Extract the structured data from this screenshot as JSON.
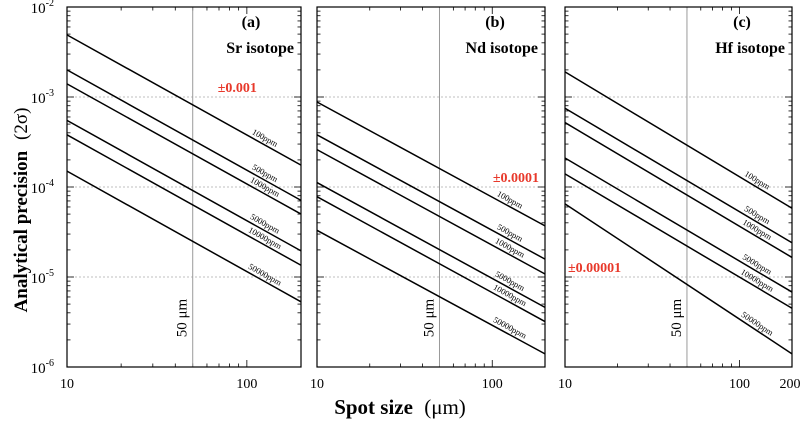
{
  "figure": {
    "ylabel": "Analytical precision",
    "ylabel_sym": "(2σ)",
    "xlabel": "Spot size",
    "xlabel_unit": "(μm)",
    "line_color": "#000000",
    "highlight_color": "#e8392b",
    "refline_color": "#9a9a9a",
    "gridline_color": "#aaaaaa"
  },
  "y_axis": {
    "scale": "log",
    "ylim": [
      1e-06,
      0.01
    ],
    "ticks": [
      {
        "value": 0.01,
        "base": "10",
        "exp": "-2"
      },
      {
        "value": 0.001,
        "base": "10",
        "exp": "-3"
      },
      {
        "value": 0.0001,
        "base": "10",
        "exp": "-4"
      },
      {
        "value": 1e-05,
        "base": "10",
        "exp": "-5"
      },
      {
        "value": 1e-06,
        "base": "10",
        "exp": "-6"
      }
    ],
    "dashed_grid_at": [
      0.001,
      0.0001,
      1e-05
    ]
  },
  "chart_data": [
    {
      "type": "line",
      "panel_label": "(a)",
      "title": "Sr isotope",
      "xscale": "log",
      "xlim": [
        10,
        200
      ],
      "yscale": "log",
      "ylim": [
        1e-06,
        0.01
      ],
      "x_ticks": [
        "10",
        "100"
      ],
      "reference_line": {
        "x": 50,
        "label": "50 μm"
      },
      "annotation": {
        "text": "±0.001",
        "value": 0.001
      },
      "series": [
        {
          "name": "100ppm",
          "x": [
            10,
            200
          ],
          "y": [
            0.0049,
            0.000175
          ]
        },
        {
          "name": "500ppm",
          "x": [
            10,
            200
          ],
          "y": [
            0.002,
            7.1e-05
          ]
        },
        {
          "name": "1000ppm",
          "x": [
            10,
            200
          ],
          "y": [
            0.0014,
            5e-05
          ]
        },
        {
          "name": "5000ppm",
          "x": [
            10,
            200
          ],
          "y": [
            0.00055,
            1.95e-05
          ]
        },
        {
          "name": "10000ppm",
          "x": [
            10,
            200
          ],
          "y": [
            0.00038,
            1.35e-05
          ]
        },
        {
          "name": "50000ppm",
          "x": [
            10,
            200
          ],
          "y": [
            0.00015,
            5.3e-06
          ]
        }
      ]
    },
    {
      "type": "line",
      "panel_label": "(b)",
      "title": "Nd isotope",
      "xscale": "log",
      "xlim": [
        10,
        200
      ],
      "yscale": "log",
      "ylim": [
        1e-06,
        0.01
      ],
      "x_ticks": [
        "10",
        "100"
      ],
      "reference_line": {
        "x": 50,
        "label": "50 μm"
      },
      "annotation": {
        "text": "±0.0001",
        "value": 0.0001
      },
      "series": [
        {
          "name": "100ppm",
          "x": [
            10,
            200
          ],
          "y": [
            0.00088,
            3.7e-05
          ]
        },
        {
          "name": "500ppm",
          "x": [
            10,
            200
          ],
          "y": [
            0.00038,
            1.58e-05
          ]
        },
        {
          "name": "1000ppm",
          "x": [
            10,
            200
          ],
          "y": [
            0.00026,
            1.08e-05
          ]
        },
        {
          "name": "5000ppm",
          "x": [
            10,
            200
          ],
          "y": [
            0.000112,
            4.6e-06
          ]
        },
        {
          "name": "10000ppm",
          "x": [
            10,
            200
          ],
          "y": [
            7.8e-05,
            3.2e-06
          ]
        },
        {
          "name": "50000ppm",
          "x": [
            10,
            200
          ],
          "y": [
            3.3e-05,
            1.4e-06
          ]
        }
      ]
    },
    {
      "type": "line",
      "panel_label": "(c)",
      "title": "Hf isotope",
      "xscale": "log",
      "xlim": [
        10,
        200
      ],
      "yscale": "log",
      "ylim": [
        1e-06,
        0.01
      ],
      "x_ticks": [
        "10",
        "100",
        "200"
      ],
      "reference_line": {
        "x": 50,
        "label": "50 μm"
      },
      "annotation": {
        "text": "±0.00001",
        "value": 1e-05
      },
      "series": [
        {
          "name": "100ppm",
          "x": [
            10,
            200
          ],
          "y": [
            0.0019,
            5.8e-05
          ]
        },
        {
          "name": "500ppm",
          "x": [
            10,
            200
          ],
          "y": [
            0.00075,
            2.4e-05
          ]
        },
        {
          "name": "1000ppm",
          "x": [
            10,
            200
          ],
          "y": [
            0.00052,
            1.65e-05
          ]
        },
        {
          "name": "5000ppm",
          "x": [
            10,
            200
          ],
          "y": [
            0.00021,
            6.8e-06
          ]
        },
        {
          "name": "10000ppm",
          "x": [
            10,
            200
          ],
          "y": [
            0.00014,
            4.5e-06
          ]
        },
        {
          "name": "50000ppm",
          "x": [
            10,
            200
          ],
          "y": [
            6.5e-05,
            1.4e-06
          ]
        }
      ]
    }
  ]
}
